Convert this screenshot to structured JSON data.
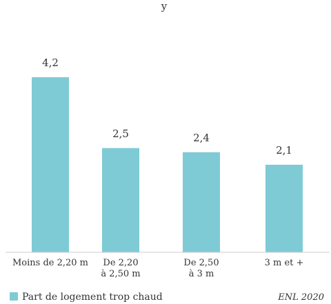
{
  "chart_data": {
    "type": "bar",
    "categories": [
      [
        "Moins de 2,20 m"
      ],
      [
        "De 2,20",
        "à 2,50 m"
      ],
      [
        "De 2,50",
        "à 3 m"
      ],
      [
        "3 m et +"
      ]
    ],
    "series": [
      {
        "name": "Part de logement trop chaud",
        "values": [
          4.2,
          2.5,
          2.4,
          2.1
        ],
        "labels": [
          "4,2",
          "2,5",
          "2,4",
          "2,1"
        ],
        "color": "#7ecbd6"
      }
    ],
    "ylim": [
      0,
      4.2
    ],
    "grid": false,
    "legend_position": "bottom-left",
    "source": "ENL 2020"
  }
}
